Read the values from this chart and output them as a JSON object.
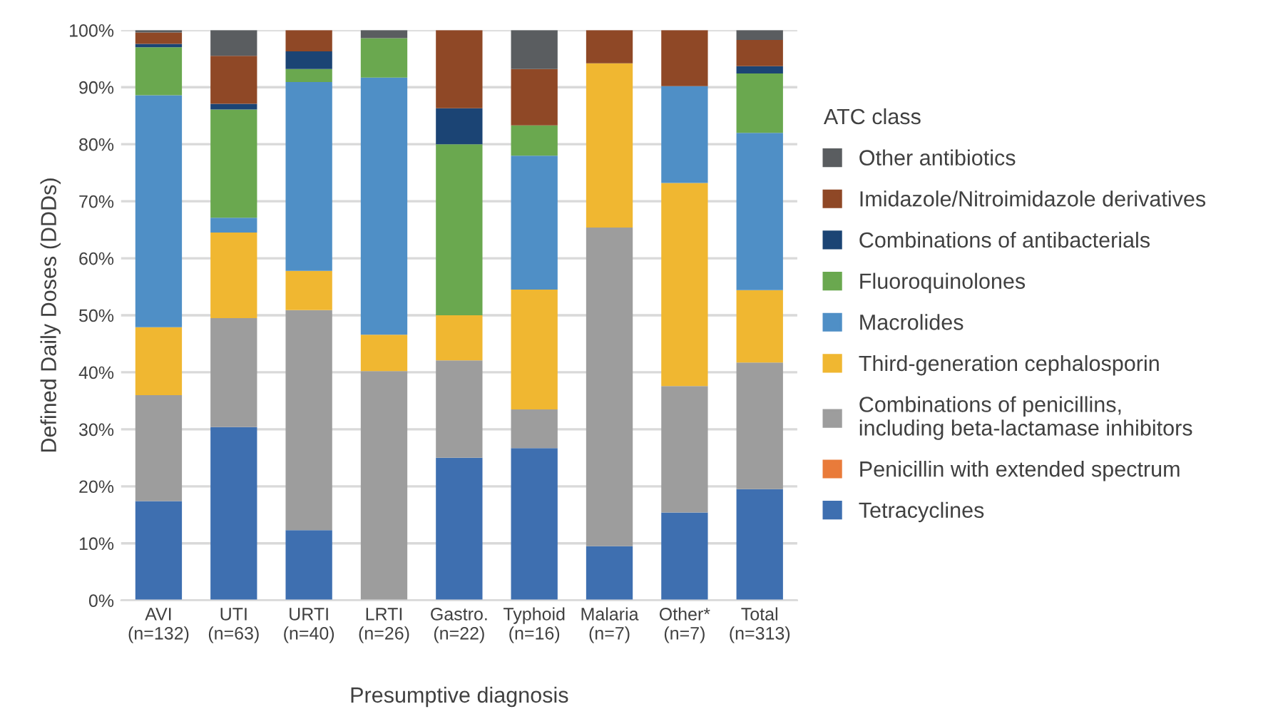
{
  "chart_data": {
    "type": "bar",
    "stacked": true,
    "xlabel": "Presumptive diagnosis",
    "ylabel": "Defined Daily Doses (DDDs)",
    "legend_title": "ATC class",
    "categories": [
      "AVI\n(n=132)",
      "UTI\n(n=63)",
      "URTI\n(n=40)",
      "LRTI\n(n=26)",
      "Gastro.\n(n=22)",
      "Typhoid\n(n=16)",
      "Malaria\n(n=7)",
      "Other*\n(n=7)",
      "Total\n(n=313)"
    ],
    "series": [
      {
        "name": "Tetracyclines",
        "color": "#3e6fb0",
        "values": [
          17.4,
          30.4,
          12.3,
          0,
          25.0,
          26.7,
          9.5,
          15.4,
          19.5
        ]
      },
      {
        "name": "Penicillin with extended spectrum",
        "color": "#e97b3a",
        "values": [
          0,
          0,
          0,
          0,
          0,
          0,
          0,
          0,
          0
        ]
      },
      {
        "name": "Combinations of penicillins,\nincluding beta-lactamase inhibitors",
        "color": "#9d9d9d",
        "values": [
          18.6,
          19.1,
          38.6,
          40.2,
          17.1,
          6.8,
          55.9,
          22.2,
          22.2
        ]
      },
      {
        "name": "Third-generation cephalosporin",
        "color": "#f0b731",
        "values": [
          11.9,
          15.0,
          6.9,
          6.4,
          7.9,
          21.0,
          28.8,
          35.6,
          12.7
        ]
      },
      {
        "name": "Macrolides",
        "color": "#4f8fc6",
        "values": [
          40.7,
          2.6,
          33.1,
          45.1,
          0,
          23.5,
          0,
          17.0,
          27.6
        ]
      },
      {
        "name": "Fluoroquinolones",
        "color": "#6aa84f",
        "values": [
          8.4,
          19.0,
          2.3,
          6.9,
          30.0,
          5.3,
          0,
          0,
          10.4
        ]
      },
      {
        "name": "Combinations of antibacterials",
        "color": "#1b4474",
        "values": [
          0.6,
          1.0,
          3.1,
          0,
          6.3,
          0,
          0,
          0,
          1.3
        ]
      },
      {
        "name": "Imidazole/Nitroimidazole derivatives",
        "color": "#8f4826",
        "values": [
          2.0,
          8.4,
          3.7,
          0,
          13.7,
          9.9,
          5.8,
          9.8,
          4.6
        ]
      },
      {
        "name": "Other antibiotics",
        "color": "#5a5d60",
        "values": [
          0.4,
          4.5,
          0,
          1.4,
          0,
          6.8,
          0,
          0,
          1.7
        ]
      }
    ],
    "ylim": [
      0,
      100
    ],
    "yticks": [
      {
        "value": 0,
        "label": "0%"
      },
      {
        "value": 10,
        "label": "10%"
      },
      {
        "value": 20,
        "label": "20%"
      },
      {
        "value": 30,
        "label": "30%"
      },
      {
        "value": 40,
        "label": "40%"
      },
      {
        "value": 50,
        "label": "50%"
      },
      {
        "value": 60,
        "label": "60%"
      },
      {
        "value": 70,
        "label": "70%"
      },
      {
        "value": 80,
        "label": "80%"
      },
      {
        "value": 90,
        "label": "90%"
      },
      {
        "value": 100,
        "label": "100%"
      }
    ],
    "grid": "y",
    "legend": "right"
  }
}
